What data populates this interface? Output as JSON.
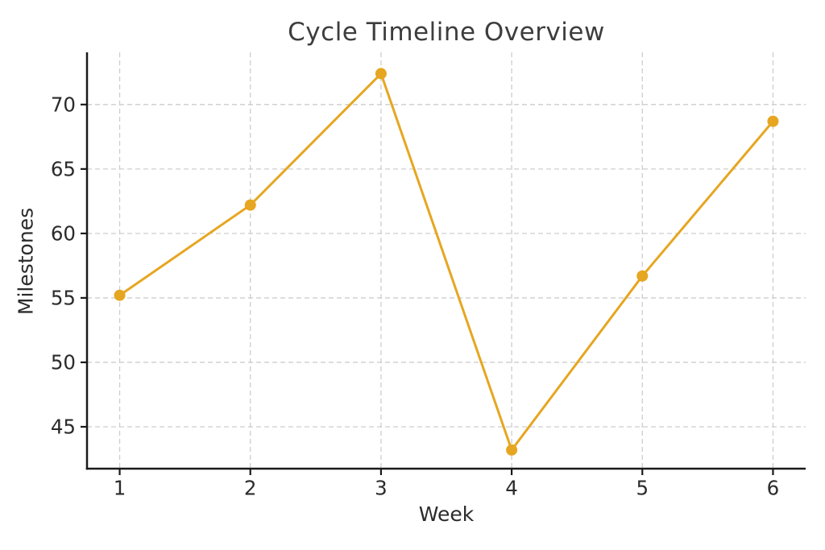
{
  "figure": {
    "background": "#ffffff"
  },
  "chart_data": {
    "type": "line",
    "title": "Cycle Timeline Overview",
    "xlabel": "Week",
    "ylabel": "Milestones",
    "x": [
      1,
      2,
      3,
      4,
      5,
      6
    ],
    "series": [
      {
        "name": "Milestones",
        "values": [
          55.2,
          62.2,
          72.4,
          43.2,
          56.7,
          68.7
        ],
        "color": "#E6A621",
        "marker": "circle",
        "line_width": 3,
        "marker_radius": 7
      }
    ],
    "xlim": [
      0.75,
      6.25
    ],
    "ylim": [
      41.75,
      74.05
    ],
    "xticks": [
      1,
      2,
      3,
      4,
      5,
      6
    ],
    "yticks": [
      45,
      50,
      55,
      60,
      65,
      70
    ],
    "grid": true,
    "grid_color": "#cdcdcd",
    "grid_dash": "6,4",
    "axis_color": "#1a1a1a",
    "tick_label_color": "#2b2b2b",
    "title_color": "#3d3d3d",
    "legend_position": "none"
  }
}
